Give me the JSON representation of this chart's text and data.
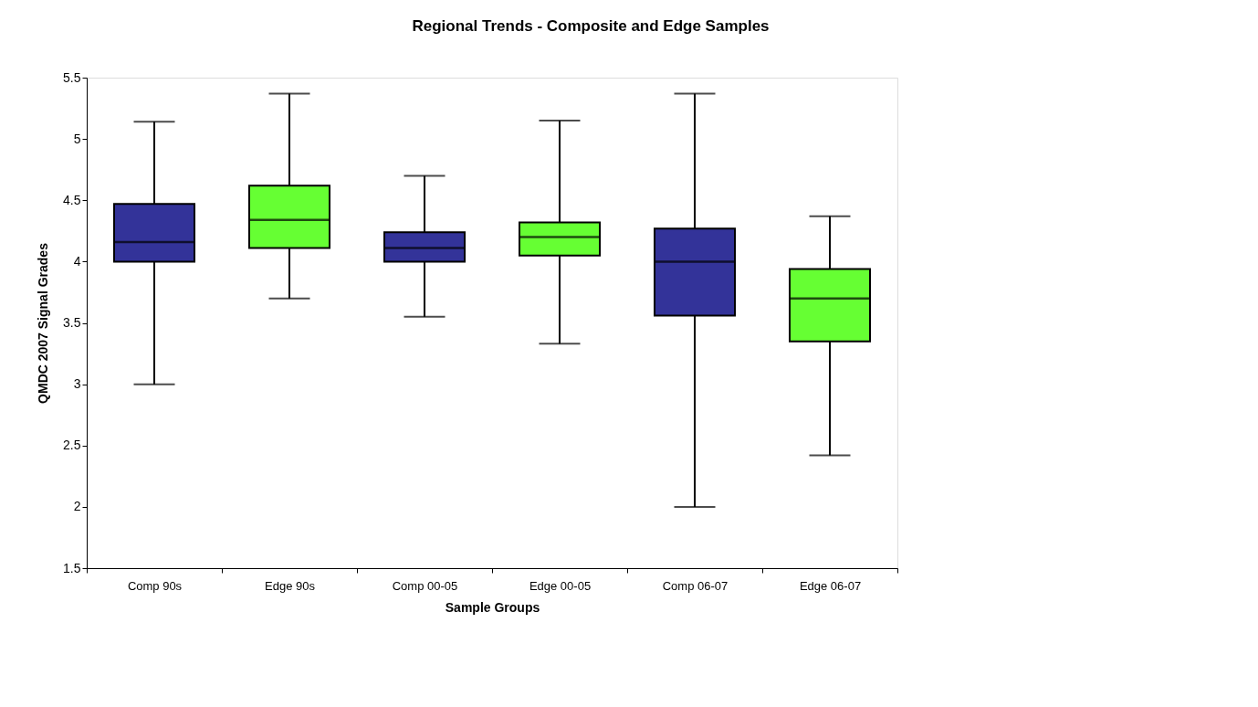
{
  "chart_data": {
    "type": "box",
    "title": "Regional Trends - Composite and Edge Samples",
    "xlabel": "Sample Groups",
    "ylabel": "QMDC 2007 Signal Grades",
    "categories": [
      "Comp 90s",
      "Edge 90s",
      "Comp 00-05",
      "Edge 00-05",
      "Comp 06-07",
      "Edge 06-07"
    ],
    "boxes": [
      {
        "low": 3.0,
        "q1": 4.0,
        "median": 4.16,
        "q3": 4.47,
        "high": 5.14
      },
      {
        "low": 3.7,
        "q1": 4.11,
        "median": 4.34,
        "q3": 4.62,
        "high": 5.37
      },
      {
        "low": 3.55,
        "q1": 4.0,
        "median": 4.11,
        "q3": 4.24,
        "high": 4.7
      },
      {
        "low": 3.33,
        "q1": 4.05,
        "median": 4.2,
        "q3": 4.32,
        "high": 5.15
      },
      {
        "low": 2.0,
        "q1": 3.56,
        "median": 4.0,
        "q3": 4.27,
        "high": 5.37
      },
      {
        "low": 2.42,
        "q1": 3.35,
        "median": 3.7,
        "q3": 3.94,
        "high": 4.37
      }
    ],
    "colors": [
      "#333399",
      "#66ff33",
      "#333399",
      "#66ff33",
      "#333399",
      "#66ff33"
    ],
    "ylim": [
      1.5,
      5.5
    ],
    "yticks": [
      1.5,
      2,
      2.5,
      3,
      3.5,
      4,
      4.5,
      5,
      5.5
    ]
  }
}
